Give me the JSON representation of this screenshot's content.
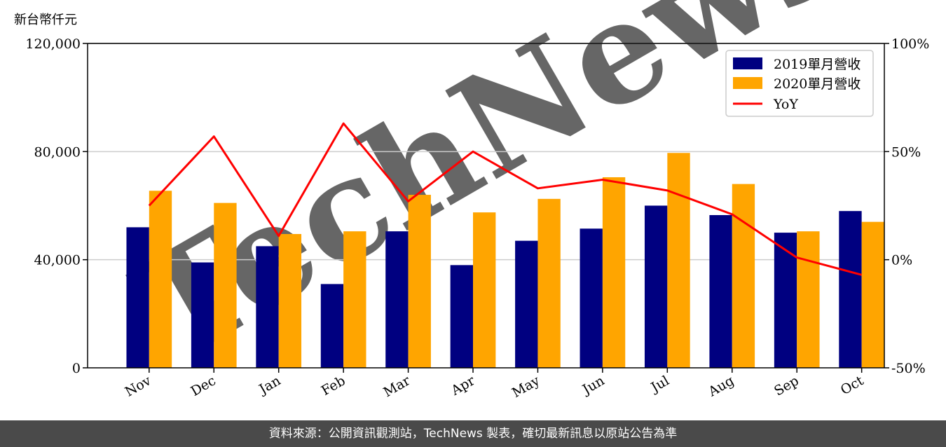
{
  "unit_label": "新台幣仟元",
  "watermark": "TechNews",
  "footer": "資料來源：公開資訊觀測站，TechNews 製表，確切最新訊息以原站公告為準",
  "colors": {
    "series_2019": "#000080",
    "series_2020": "#ffa500",
    "yoy": "#ff0000",
    "grid": "#cccccc",
    "footer_bg": "#4a4a4a"
  },
  "chart_data": {
    "type": "bar",
    "categories": [
      "Nov",
      "Dec",
      "Jan",
      "Feb",
      "Mar",
      "Apr",
      "May",
      "Jun",
      "Jul",
      "Aug",
      "Sep",
      "Oct"
    ],
    "series": [
      {
        "name": "2019單月營收",
        "values": [
          52000,
          39000,
          45000,
          31000,
          50500,
          38000,
          47000,
          51500,
          60000,
          56500,
          50000,
          58000
        ]
      },
      {
        "name": "2020單月營收",
        "values": [
          65500,
          61000,
          49500,
          50500,
          64000,
          57500,
          62500,
          70500,
          79500,
          68000,
          50500,
          54000
        ]
      }
    ],
    "line": {
      "name": "YoY",
      "values_pct": [
        25,
        57,
        11,
        63,
        27,
        50,
        33,
        37,
        32,
        21,
        1,
        -7
      ]
    },
    "y_left": {
      "ylim": [
        0,
        120000
      ],
      "ticks": [
        "0",
        "40,000",
        "80,000",
        "120,000"
      ],
      "tick_values": [
        0,
        40000,
        80000,
        120000
      ]
    },
    "y_right": {
      "ylim": [
        -50,
        100
      ],
      "ticks": [
        "-50%",
        "0%",
        "50%",
        "100%"
      ],
      "tick_values": [
        -50,
        0,
        50,
        100
      ]
    },
    "grid": true,
    "legend_position": "top-right"
  }
}
